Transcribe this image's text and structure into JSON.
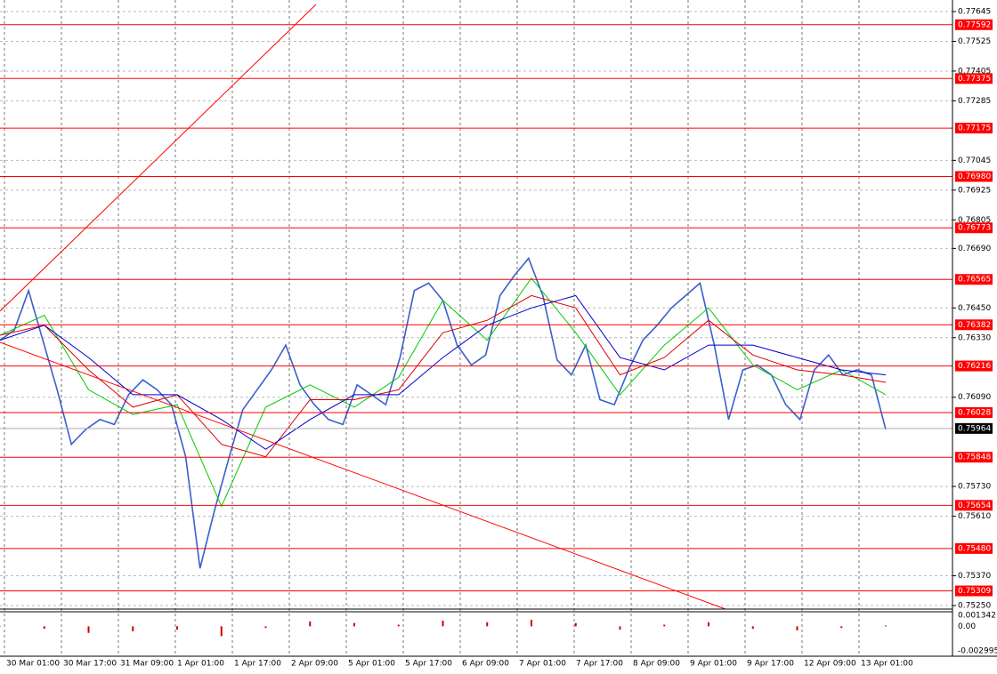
{
  "chart_data": {
    "type": "line",
    "ylim": [
      0.7525,
      0.77645
    ],
    "yticks": [
      0.77645,
      0.77525,
      0.77405,
      0.77285,
      0.77045,
      0.76925,
      0.76805,
      {
        "value": 0.7669,
        "label": "0.76690"
      },
      {
        "value": 0.7645,
        "label": "0.76450"
      },
      {
        "value": 0.7633,
        "label": "0.76330"
      },
      {
        "value": 0.7609,
        "label": "0.76090"
      },
      {
        "value": 0.7573,
        "label": "0.75730"
      },
      {
        "value": 0.7561,
        "label": "0.75610"
      },
      {
        "value": 0.7537,
        "label": "0.75370"
      },
      {
        "value": 0.7525,
        "label": "0.75250"
      }
    ],
    "grid": true,
    "level_color": "#ff0000",
    "levels": [
      0.77592,
      0.77375,
      0.77175,
      {
        "value": 0.7698,
        "label": "0.76980"
      },
      0.76773,
      0.76565,
      0.76382,
      0.76216,
      0.76028,
      0.75848,
      0.75654,
      {
        "value": 0.7548,
        "label": "0.75480"
      },
      0.75309
    ],
    "current_price": 0.75964,
    "x_labels": [
      "30 Mar 01:00",
      "30 Mar 17:00",
      "31 Mar 09:00",
      "1 Apr 01:00",
      "1 Apr 17:00",
      "2 Apr 09:00",
      "5 Apr 01:00",
      "5 Apr 17:00",
      "6 Apr 09:00",
      "7 Apr 01:00",
      "7 Apr 17:00",
      "8 Apr 09:00",
      "9 Apr 01:00",
      "9 Apr 17:00",
      "12 Apr 09:00",
      "13 Apr 01:00"
    ],
    "series": [
      {
        "color": "#3a5fcd",
        "values": [
          0.7632,
          0.7636,
          0.7652,
          0.7632,
          0.7612,
          0.759,
          0.7596,
          0.76,
          0.7598,
          0.761,
          0.7616,
          0.7612,
          0.7606,
          0.7585,
          0.754,
          0.7563,
          0.7584,
          0.7604,
          0.7612,
          0.762,
          0.763,
          0.7614,
          0.7606,
          0.76,
          0.7598,
          0.7614,
          0.761,
          0.7606,
          0.7625,
          0.7652,
          0.7655,
          0.7648,
          0.763,
          0.7622,
          0.7626,
          0.765,
          0.7658,
          0.7665,
          0.765,
          0.7624,
          0.7618,
          0.763,
          0.7608,
          0.7606,
          0.762,
          0.7632,
          0.7638,
          0.7645,
          0.765,
          0.7655,
          0.763,
          0.76,
          0.762,
          0.7622,
          0.7618,
          0.7606,
          0.76,
          0.762,
          0.7626,
          0.7618,
          0.762,
          0.7618,
          0.7596
        ]
      },
      {
        "color": "#00cc00",
        "values": [
          0.7634,
          0.7642,
          0.7612,
          0.7602,
          0.7606,
          0.7565,
          0.7605,
          0.7614,
          0.7605,
          0.7617,
          0.7648,
          0.7632,
          0.7657,
          0.7635,
          0.761,
          0.763,
          0.7645,
          0.7622,
          0.7612,
          0.762,
          0.761
        ]
      },
      {
        "color": "#dd0000",
        "values": [
          0.7634,
          0.7638,
          0.762,
          0.7605,
          0.761,
          0.759,
          0.7585,
          0.7608,
          0.7608,
          0.7612,
          0.7635,
          0.764,
          0.765,
          0.7645,
          0.7618,
          0.7625,
          0.764,
          0.7626,
          0.762,
          0.7618,
          0.7615
        ]
      },
      {
        "color": "#0000cc",
        "values": [
          0.7632,
          0.7638,
          0.7625,
          0.761,
          0.761,
          0.76,
          0.7588,
          0.76,
          0.761,
          0.761,
          0.7625,
          0.7638,
          0.7645,
          0.765,
          0.7625,
          0.762,
          0.763,
          0.763,
          0.7625,
          0.762,
          0.7618
        ]
      }
    ],
    "oscillator": {
      "color": "#cc0000",
      "ylim": [
        -0.002995,
        0.001342
      ],
      "yticks": [
        0.001342,
        {
          "value": 0,
          "label": "0.00"
        },
        -0.002995
      ],
      "values": [
        0,
        -0.0003,
        -0.0008,
        -0.0006,
        -0.0004,
        -0.0012,
        -0.0002,
        0.0006,
        0.0004,
        0.0002,
        0.0007,
        0.0005,
        0.0008,
        0.0004,
        -0.0004,
        0.0002,
        0.0005,
        -0.0003,
        -0.0005,
        -0.0002,
        0.0001
      ]
    }
  }
}
